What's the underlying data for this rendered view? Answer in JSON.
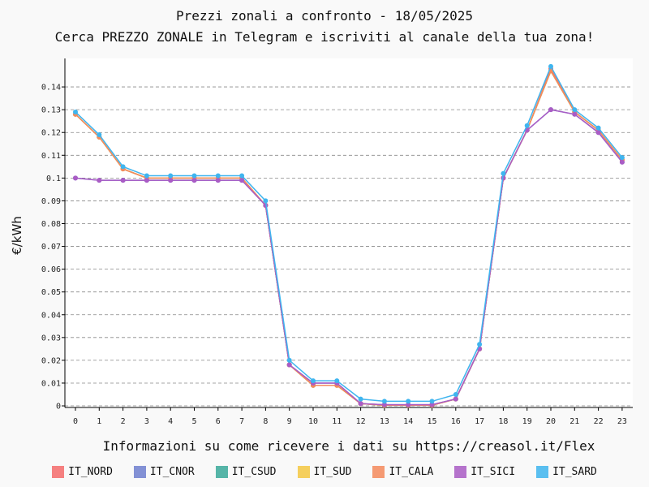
{
  "chart_data": {
    "type": "line",
    "title": "Prezzi zonali a confronto - 18/05/2025",
    "subtitle": "Cerca PREZZO ZONALE in Telegram e iscriviti al canale della tua zona!",
    "xlabel": "",
    "ylabel": "€/kWh",
    "footer": "Informazioni su come ricevere i dati su https://creasol.it/Flex",
    "x": [
      0,
      1,
      2,
      3,
      4,
      5,
      6,
      7,
      8,
      9,
      10,
      11,
      12,
      13,
      14,
      15,
      16,
      17,
      18,
      19,
      20,
      21,
      22,
      23
    ],
    "x_tick_labels": [
      "0",
      "1",
      "2",
      "3",
      "4",
      "5",
      "6",
      "7",
      "8",
      "9",
      "10",
      "11",
      "12",
      "13",
      "14",
      "15",
      "16",
      "17",
      "18",
      "19",
      "20",
      "21",
      "22",
      "23"
    ],
    "y_tick_values": [
      0,
      0.01,
      0.02,
      0.03,
      0.04,
      0.05,
      0.06,
      0.07,
      0.08,
      0.09,
      0.1,
      0.11,
      0.12,
      0.13,
      0.14
    ],
    "y_tick_labels": [
      "0",
      "0.01",
      "0.02",
      "0.03",
      "0.04",
      "0.05",
      "0.06",
      "0.07",
      "0.08",
      "0.09",
      "0.1",
      "0.11",
      "0.12",
      "0.13",
      "0.14"
    ],
    "ylim": [
      -0.0007,
      0.1525
    ],
    "grid": "horizontal-dashed",
    "legend_position": "bottom",
    "series": [
      {
        "name": "IT_NORD",
        "color": "#f56c6c",
        "values": [
          0.128,
          0.118,
          0.104,
          0.1,
          0.1,
          0.1,
          0.1,
          0.1,
          0.088,
          0.018,
          0.009,
          0.009,
          0.001,
          0.0003,
          0.0003,
          0.0003,
          0.003,
          0.025,
          0.1,
          0.121,
          0.148,
          0.129,
          0.121,
          0.108
        ]
      },
      {
        "name": "IT_CNOR",
        "color": "#6f7fcf",
        "values": [
          0.1,
          0.099,
          0.099,
          0.099,
          0.099,
          0.099,
          0.099,
          0.099,
          0.088,
          0.018,
          0.01,
          0.01,
          0.001,
          0.0005,
          0.0005,
          0.0005,
          0.003,
          0.025,
          0.1,
          0.121,
          0.13,
          0.128,
          0.12,
          0.107
        ]
      },
      {
        "name": "IT_CSUD",
        "color": "#3aaa9a",
        "values": [
          0.128,
          0.118,
          0.104,
          0.1,
          0.1,
          0.1,
          0.1,
          0.1,
          0.088,
          0.018,
          0.009,
          0.009,
          0.001,
          0.0003,
          0.0003,
          0.0003,
          0.003,
          0.025,
          0.1,
          0.121,
          0.147,
          0.129,
          0.121,
          0.108
        ]
      },
      {
        "name": "IT_SUD",
        "color": "#f5c842",
        "values": [
          0.128,
          0.118,
          0.104,
          0.1,
          0.1,
          0.1,
          0.1,
          0.1,
          0.088,
          0.018,
          0.009,
          0.009,
          0.001,
          0.0003,
          0.0003,
          0.0003,
          0.003,
          0.025,
          0.1,
          0.121,
          0.147,
          0.129,
          0.121,
          0.108
        ]
      },
      {
        "name": "IT_CALA",
        "color": "#f58a5c",
        "values": [
          0.128,
          0.118,
          0.104,
          0.1,
          0.1,
          0.1,
          0.1,
          0.1,
          0.088,
          0.018,
          0.009,
          0.009,
          0.001,
          0.0003,
          0.0003,
          0.0003,
          0.003,
          0.025,
          0.1,
          0.121,
          0.147,
          0.129,
          0.121,
          0.108
        ]
      },
      {
        "name": "IT_SICI",
        "color": "#aa5cc5",
        "values": [
          0.1,
          0.099,
          0.099,
          0.099,
          0.099,
          0.099,
          0.099,
          0.099,
          0.088,
          0.018,
          0.01,
          0.01,
          0.001,
          0.0005,
          0.0005,
          0.0005,
          0.003,
          0.025,
          0.1,
          0.121,
          0.13,
          0.128,
          0.12,
          0.107
        ]
      },
      {
        "name": "IT_SARD",
        "color": "#3fb5ef",
        "values": [
          0.129,
          0.119,
          0.105,
          0.101,
          0.101,
          0.101,
          0.101,
          0.101,
          0.09,
          0.02,
          0.011,
          0.011,
          0.003,
          0.002,
          0.002,
          0.002,
          0.005,
          0.027,
          0.102,
          0.123,
          0.149,
          0.13,
          0.122,
          0.109
        ]
      }
    ]
  }
}
